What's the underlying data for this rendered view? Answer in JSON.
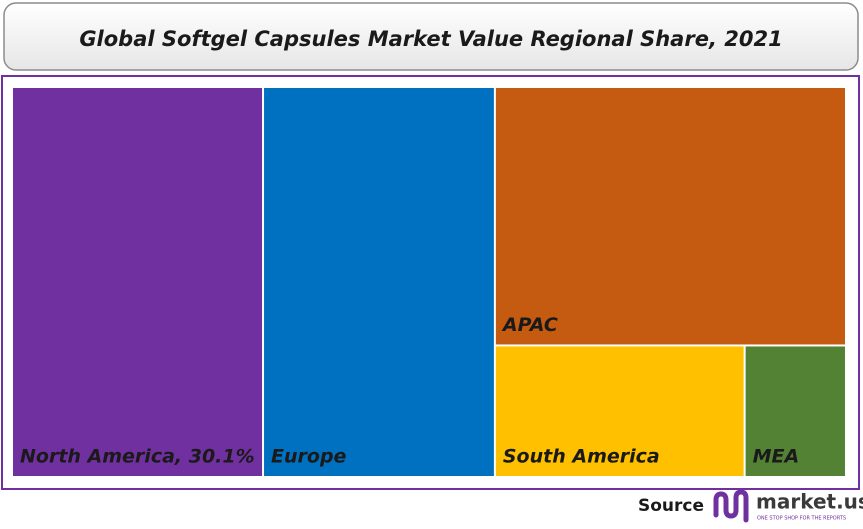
{
  "chart_data": {
    "type": "treemap",
    "title": "Global Softgel Capsules Market Value Regional Share, 2021",
    "categories": [
      "North America, 30.1%",
      "Europe",
      "APAC",
      "South America",
      "MEA"
    ],
    "values": [
      30.1,
      27.8,
      27.9,
      10.1,
      4.1
    ],
    "colors": [
      "#7030a0",
      "#0070c0",
      "#c55a11",
      "#ffc000",
      "#548235"
    ]
  },
  "source": {
    "label": "Source",
    "brand": "market.us",
    "tagline": "ONE STOP SHOP FOR THE REPORTS"
  }
}
